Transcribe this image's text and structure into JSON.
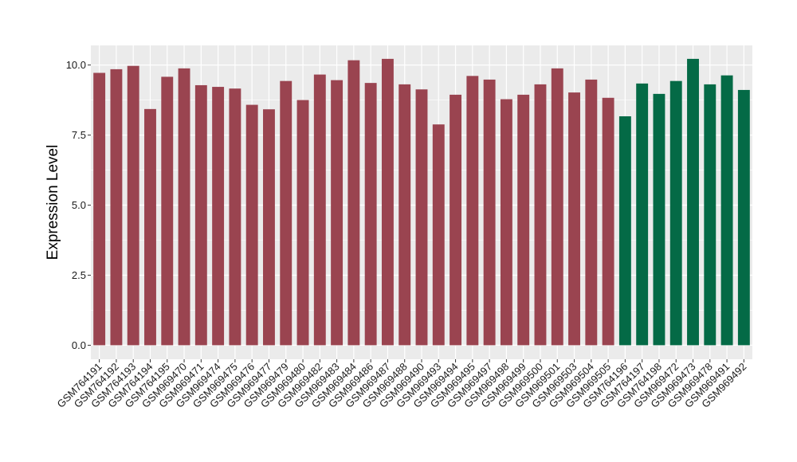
{
  "chart_data": {
    "type": "bar",
    "title": "",
    "xlabel": "",
    "ylabel": "Expression Level",
    "ylim": [
      -0.5,
      10.7
    ],
    "yticks": [
      0.0,
      2.5,
      5.0,
      7.5,
      10.0
    ],
    "ytick_labels": [
      "0.0",
      "2.5",
      "5.0",
      "7.5",
      "10.0"
    ],
    "grid": true,
    "legend": "none",
    "categories": [
      "GSM764191",
      "GSM764192",
      "GSM764193",
      "GSM764194",
      "GSM764195",
      "GSM969470",
      "GSM969471",
      "GSM969474",
      "GSM969475",
      "GSM969476",
      "GSM969477",
      "GSM969479",
      "GSM969480",
      "GSM969482",
      "GSM969483",
      "GSM969484",
      "GSM969486",
      "GSM969487",
      "GSM969488",
      "GSM969490",
      "GSM969493",
      "GSM969494",
      "GSM969495",
      "GSM969497",
      "GSM969498",
      "GSM969499",
      "GSM969500",
      "GSM969501",
      "GSM969503",
      "GSM969504",
      "GSM969505",
      "GSM764196",
      "GSM764197",
      "GSM764198",
      "GSM969472",
      "GSM969473",
      "GSM969478",
      "GSM969491",
      "GSM969492"
    ],
    "values": [
      9.72,
      9.85,
      9.97,
      8.43,
      9.58,
      9.88,
      9.28,
      9.22,
      9.16,
      8.58,
      8.42,
      9.43,
      8.75,
      9.66,
      9.46,
      10.17,
      9.36,
      10.22,
      9.31,
      9.13,
      7.88,
      8.94,
      9.61,
      9.48,
      8.78,
      8.94,
      9.31,
      9.88,
      9.02,
      9.48,
      8.83,
      8.17,
      9.34,
      8.97,
      9.43,
      10.22,
      9.31,
      9.63,
      9.11
    ],
    "group_colors": [
      "#9a4450",
      "#9a4450",
      "#9a4450",
      "#9a4450",
      "#9a4450",
      "#9a4450",
      "#9a4450",
      "#9a4450",
      "#9a4450",
      "#9a4450",
      "#9a4450",
      "#9a4450",
      "#9a4450",
      "#9a4450",
      "#9a4450",
      "#9a4450",
      "#9a4450",
      "#9a4450",
      "#9a4450",
      "#9a4450",
      "#9a4450",
      "#9a4450",
      "#9a4450",
      "#9a4450",
      "#9a4450",
      "#9a4450",
      "#9a4450",
      "#9a4450",
      "#9a4450",
      "#9a4450",
      "#9a4450",
      "#046a46",
      "#046a46",
      "#046a46",
      "#046a46",
      "#046a46",
      "#046a46",
      "#046a46",
      "#046a46"
    ],
    "panel_background": "#ebebeb",
    "grid_color": "#ffffff"
  }
}
